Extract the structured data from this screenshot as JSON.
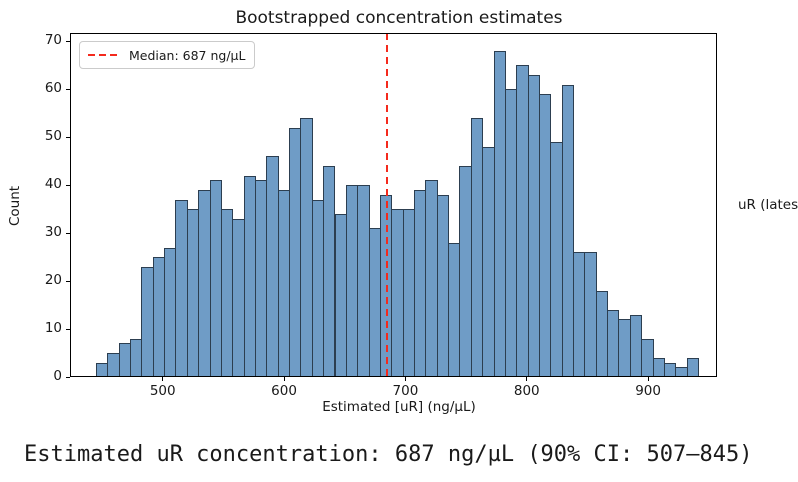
{
  "figure": {
    "title": "Bootstrapped concentration estimates",
    "xlabel": "Estimated [uR] (ng/µL)",
    "ylabel": "Count",
    "legend": {
      "label": "Median: 687 ng/µL"
    },
    "side_label": "uR (lates",
    "footer_text": "Estimated uR concentration: 687 ng/µL (90% CI: 507–845)",
    "colors": {
      "bar_fill": "#6f9cc6",
      "bar_edge": "#2c3e50",
      "median_line": "#f42a1d",
      "text": "#1a1a1a"
    }
  },
  "chart_data": {
    "type": "histogram",
    "title": "Bootstrapped concentration estimates",
    "xlabel": "Estimated [uR] (ng/µL)",
    "ylabel": "Count",
    "bin_start": 445.0,
    "bin_width": 9.36,
    "counts": [
      3,
      5,
      7,
      8,
      23,
      25,
      27,
      37,
      35,
      39,
      41,
      35,
      33,
      42,
      41,
      46,
      39,
      52,
      54,
      37,
      44,
      34,
      40,
      40,
      31,
      38,
      35,
      35,
      39,
      41,
      38,
      28,
      44,
      54,
      48,
      68,
      60,
      65,
      63,
      59,
      49,
      61,
      26,
      26,
      18,
      14,
      12,
      13,
      8,
      4,
      3,
      2,
      4
    ],
    "median": 687,
    "ci_90": [
      507,
      845
    ],
    "xticks": [
      500,
      600,
      700,
      800,
      900
    ],
    "yticks": [
      0,
      10,
      20,
      30,
      40,
      50,
      60,
      70
    ],
    "xlim": [
      424,
      958
    ],
    "ylim": [
      0,
      71.75
    ],
    "legend_label": "Median: 687 ng/µL",
    "legend_position": "upper left",
    "grid": false
  }
}
